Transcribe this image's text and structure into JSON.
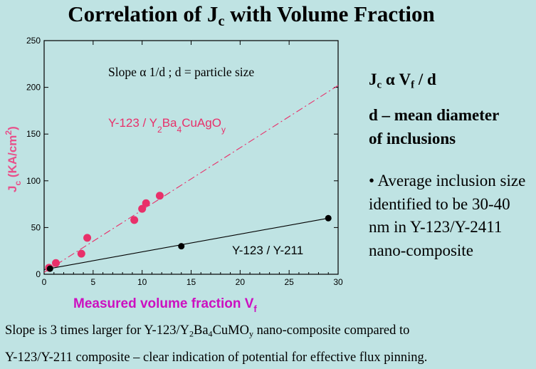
{
  "title": {
    "main": "Correlation of J",
    "sub": "c",
    "rest": " with Volume Fraction"
  },
  "right": {
    "eq": {
      "j": "J",
      "c": "c",
      "alpha": " α V",
      "f": "f",
      "rest": " / d"
    },
    "dmean_line1": "d – mean diameter",
    "dmean_line2": "of inclusions",
    "avg_text": "• Average inclusion size identified to be 30-40 nm in Y-123/Y-2411  nano-composite"
  },
  "bottom": {
    "line1_a": "Slope is 3 times larger for Y-123/Y",
    "line1_s1": "2",
    "line1_b": "Ba",
    "line1_s2": "4",
    "line1_c": "CuMO",
    "line1_s3": "y",
    "line1_d": " nano-composite compared to",
    "line2": "Y-123/Y-211 composite – clear indication of potential for effective flux pinning."
  },
  "chart_data": {
    "type": "scatter",
    "xlabel": "Measured volume fraction  V",
    "xlabel_sub": "f",
    "ylabel": "J",
    "ylabel_sub": "c",
    "ylabel_rest": " (KA/cm",
    "ylabel_sup": "2",
    "ylabel_end": ")",
    "xlim": [
      0,
      30
    ],
    "ylim": [
      0,
      250
    ],
    "x_ticks": [
      0,
      5,
      10,
      15,
      20,
      25,
      30
    ],
    "y_ticks": [
      0,
      50,
      100,
      150,
      200,
      250
    ],
    "annotation": "Slope  α 1/d ; d = particle size",
    "series": [
      {
        "name": "Y-123 / Y2Ba4CuAgOy",
        "label_parts": {
          "a": "Y-123 / Y",
          "s1": "2",
          "b": "Ba",
          "s2": "4",
          "c": "CuAgO",
          "s3": "y"
        },
        "color": "#e8306a",
        "points": [
          [
            0.5,
            7
          ],
          [
            1.2,
            12
          ],
          [
            3.8,
            22
          ],
          [
            4.4,
            39
          ],
          [
            9.2,
            58
          ],
          [
            10.0,
            70
          ],
          [
            10.4,
            76
          ],
          [
            11.8,
            84
          ]
        ],
        "fit": [
          [
            0,
            2
          ],
          [
            30,
            202
          ]
        ]
      },
      {
        "name": "Y-123 / Y-211",
        "color": "#000000",
        "points": [
          [
            0.6,
            6
          ],
          [
            14,
            30
          ],
          [
            29,
            60
          ]
        ],
        "fit": [
          [
            0,
            5
          ],
          [
            29,
            60
          ]
        ]
      }
    ]
  }
}
